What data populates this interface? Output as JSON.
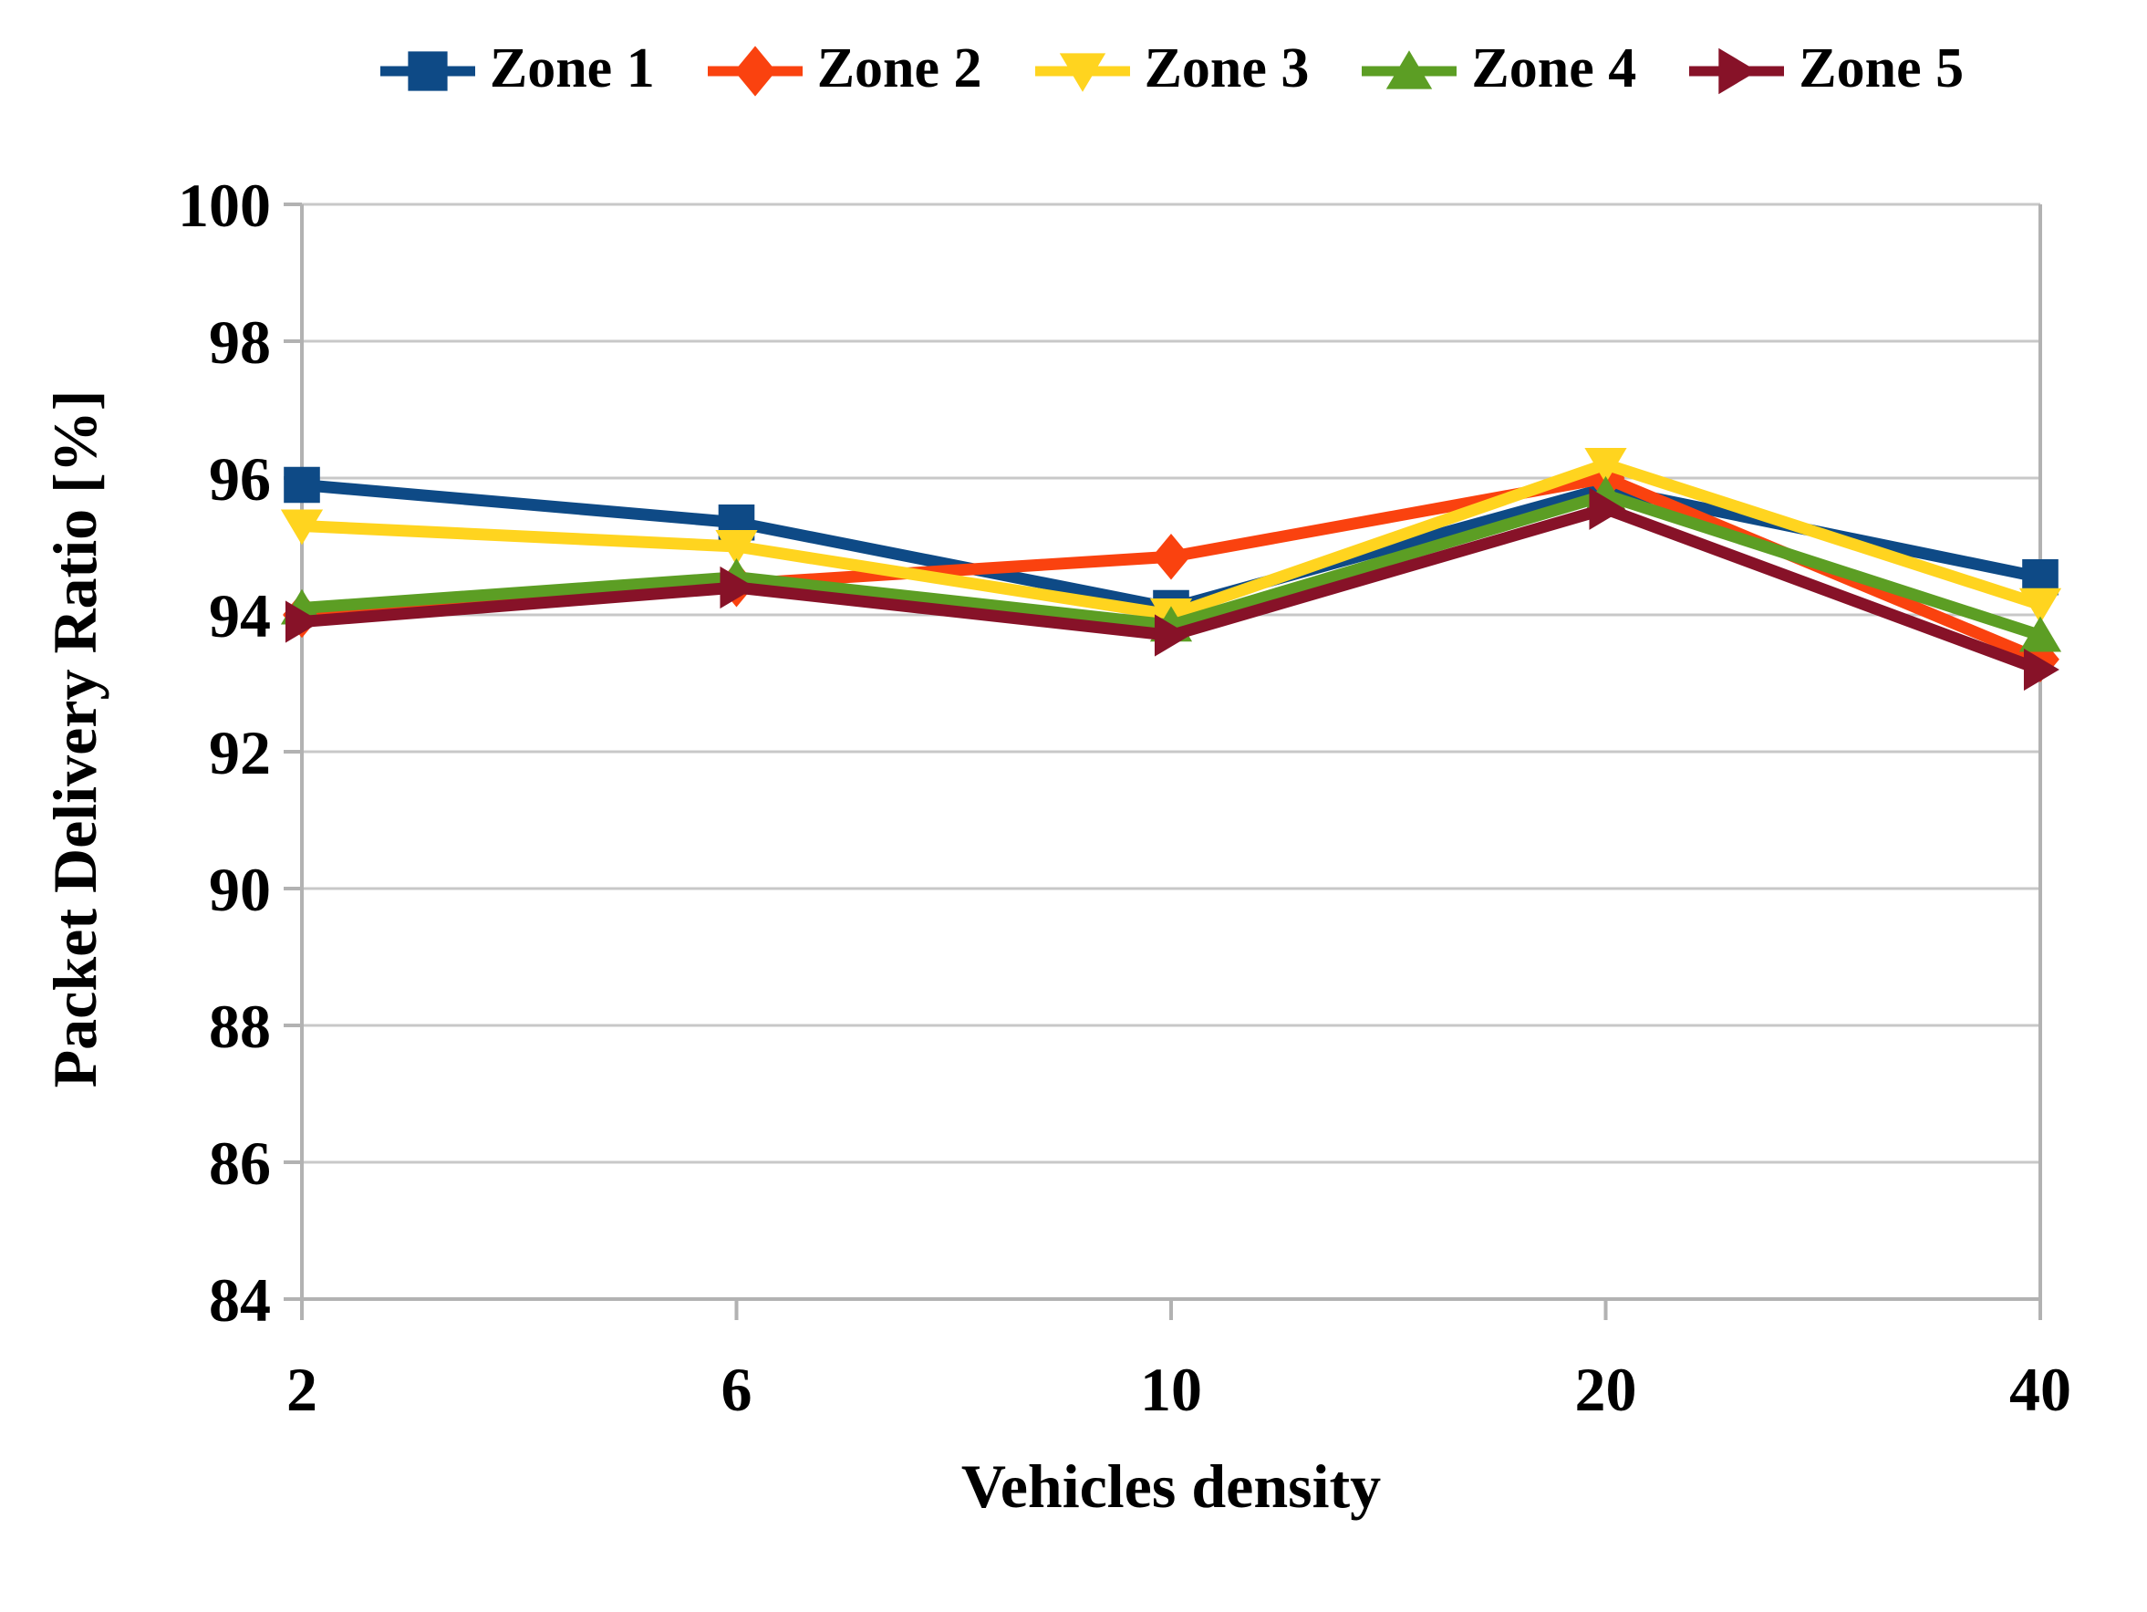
{
  "chart_data": {
    "type": "line",
    "title": "",
    "xlabel": "Vehicles density",
    "ylabel": "Packet Delivery Ratio [%]",
    "categories": [
      "2",
      "6",
      "10",
      "20",
      "40"
    ],
    "ylim": [
      84,
      100
    ],
    "ytick_step": 2,
    "yticks": [
      "84",
      "86",
      "88",
      "90",
      "92",
      "94",
      "96",
      "98",
      "100"
    ],
    "grid": "horizontal",
    "legend_position": "top",
    "series": [
      {
        "name": "Zone 1",
        "color": "#0E4A86",
        "marker": "square",
        "values": [
          95.9,
          95.35,
          94.1,
          95.85,
          94.55
        ]
      },
      {
        "name": "Zone 2",
        "color": "#FA420F",
        "marker": "diamond",
        "values": [
          94.0,
          94.45,
          94.85,
          96.0,
          93.35
        ]
      },
      {
        "name": "Zone 3",
        "color": "#FFD41F",
        "marker": "triangle-down",
        "values": [
          95.3,
          95.0,
          94.0,
          96.2,
          94.15
        ]
      },
      {
        "name": "Zone 4",
        "color": "#5C9E24",
        "marker": "triangle-up",
        "values": [
          94.1,
          94.55,
          93.85,
          95.75,
          93.7
        ]
      },
      {
        "name": "Zone 5",
        "color": "#871228",
        "marker": "triangle-right",
        "values": [
          93.9,
          94.4,
          93.7,
          95.55,
          93.2
        ]
      }
    ],
    "colors": {
      "gridline": "#C8C8C8",
      "axis": "#B2B2B2",
      "text": "#000000",
      "background": "#FFFFFF"
    }
  }
}
